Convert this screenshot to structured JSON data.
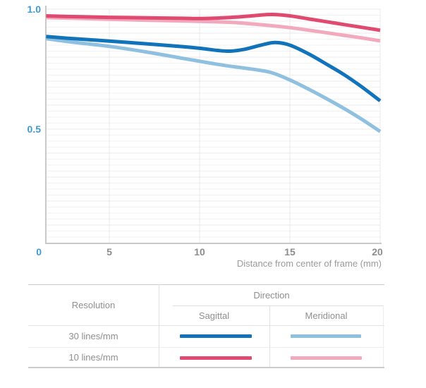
{
  "chart_data": {
    "type": "line",
    "title": "",
    "xlabel": "Distance from center of frame (mm)",
    "ylabel": "",
    "xlim": [
      0,
      20
    ],
    "ylim": [
      0,
      1.0
    ],
    "x_tick_labels": [
      "0",
      "5",
      "10",
      "15",
      "20"
    ],
    "y_tick_labels": [
      "0",
      "0.5",
      "1.0"
    ],
    "grid": "on",
    "legend_position": "table-below-chart",
    "series": [
      {
        "name": "10 lines/mm Meridional",
        "color": "#f3a9bc",
        "points": [
          [
            1.5,
            0.965
          ],
          [
            3,
            0.962
          ],
          [
            5,
            0.958
          ],
          [
            7,
            0.954
          ],
          [
            9,
            0.951
          ],
          [
            10,
            0.949
          ],
          [
            11,
            0.947
          ],
          [
            12,
            0.944
          ],
          [
            13,
            0.938
          ],
          [
            14,
            0.931
          ],
          [
            15,
            0.923
          ],
          [
            16,
            0.913
          ],
          [
            17,
            0.902
          ],
          [
            18,
            0.891
          ],
          [
            19,
            0.88
          ],
          [
            20,
            0.868
          ]
        ]
      },
      {
        "name": "30 lines/mm Meridional",
        "color": "#8fc0e0",
        "points": [
          [
            1.5,
            0.877
          ],
          [
            3,
            0.862
          ],
          [
            5,
            0.845
          ],
          [
            7,
            0.822
          ],
          [
            9,
            0.796
          ],
          [
            10,
            0.783
          ],
          [
            11,
            0.77
          ],
          [
            12,
            0.759
          ],
          [
            13,
            0.749
          ],
          [
            14,
            0.735
          ],
          [
            15,
            0.705
          ],
          [
            16,
            0.668
          ],
          [
            17,
            0.628
          ],
          [
            18,
            0.586
          ],
          [
            19,
            0.54
          ],
          [
            20,
            0.49
          ]
        ]
      },
      {
        "name": "10 lines/mm Sagittal",
        "color": "#e04a70",
        "points": [
          [
            1.5,
            0.972
          ],
          [
            3,
            0.969
          ],
          [
            5,
            0.966
          ],
          [
            7,
            0.964
          ],
          [
            9,
            0.962
          ],
          [
            10,
            0.961
          ],
          [
            11,
            0.963
          ],
          [
            12,
            0.967
          ],
          [
            13,
            0.973
          ],
          [
            14,
            0.978
          ],
          [
            15,
            0.972
          ],
          [
            16,
            0.96
          ],
          [
            17,
            0.948
          ],
          [
            18,
            0.936
          ],
          [
            19,
            0.924
          ],
          [
            20,
            0.912
          ]
        ]
      },
      {
        "name": "30 lines/mm Sagittal",
        "color": "#1173b9",
        "points": [
          [
            1.5,
            0.886
          ],
          [
            3,
            0.877
          ],
          [
            5,
            0.867
          ],
          [
            7,
            0.856
          ],
          [
            9,
            0.844
          ],
          [
            10,
            0.837
          ],
          [
            11,
            0.828
          ],
          [
            11.7,
            0.825
          ],
          [
            12.5,
            0.833
          ],
          [
            13.5,
            0.852
          ],
          [
            14.2,
            0.861
          ],
          [
            15,
            0.85
          ],
          [
            16,
            0.815
          ],
          [
            17,
            0.772
          ],
          [
            18,
            0.727
          ],
          [
            19,
            0.675
          ],
          [
            20,
            0.618
          ]
        ]
      }
    ]
  },
  "axes": {
    "y_ticks": [
      {
        "label": "1.0",
        "value": 1.0
      },
      {
        "label": "0.5",
        "value": 0.5
      }
    ],
    "origin_label": "0",
    "x_ticks": [
      {
        "label": "5",
        "mm": 5
      },
      {
        "label": "10",
        "mm": 10
      },
      {
        "label": "15",
        "mm": 15
      },
      {
        "label": "20",
        "mm": 20
      }
    ],
    "x_title": "Distance from center of frame (mm)"
  },
  "table": {
    "resolution_header": "Resolution",
    "direction_header": "Direction",
    "sagittal_header": "Sagittal",
    "meridional_header": "Meridional",
    "rows": [
      {
        "label": "30 lines/mm",
        "sagittal_color": "#1173b9",
        "meridional_color": "#8fc0e0"
      },
      {
        "label": "10 lines/mm",
        "sagittal_color": "#e04a70",
        "meridional_color": "#f3a9bc"
      }
    ]
  },
  "colors": {
    "axis_label_blue": "#3f9ad2",
    "axis_label_gray": "#8c8c8c",
    "axis_line": "#c9c9c9",
    "grid_minor": "#f2f2f2",
    "grid_major": "#e8e8e8",
    "axis_title_gray": "#9a9a9a",
    "table_text": "#8f8f8f"
  }
}
